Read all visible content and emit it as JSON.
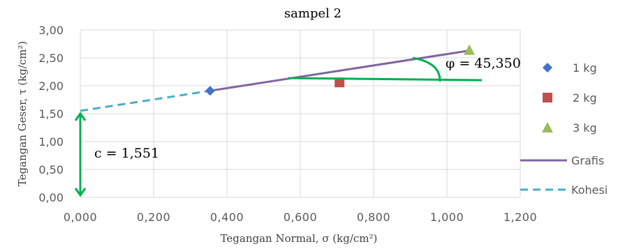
{
  "chart_data": {
    "type": "scatter",
    "title": "sampel 2",
    "xlabel": "Tegangan Normal, σ (kg/cm²)",
    "ylabel": "Tegangan Geser, τ (kg/cm²)",
    "xlim": [
      0,
      1.2
    ],
    "ylim": [
      0,
      3.0
    ],
    "x_ticks": [
      "0,000",
      "0,200",
      "0,400",
      "0,600",
      "0,800",
      "1,000",
      "1,200"
    ],
    "y_ticks": [
      "0,00",
      "0,50",
      "1,00",
      "1,50",
      "2,00",
      "2,50",
      "3,00"
    ],
    "grid": true,
    "legend_position": "right",
    "series": [
      {
        "name": "1 kg",
        "marker": "diamond",
        "color": "#4472c4",
        "points": [
          {
            "x": 0.354,
            "y": 1.91
          }
        ]
      },
      {
        "name": "2 kg",
        "marker": "square",
        "color": "#c0504d",
        "points": [
          {
            "x": 0.707,
            "y": 2.06
          }
        ]
      },
      {
        "name": "3 kg",
        "marker": "triangle",
        "color": "#9bbb59",
        "points": [
          {
            "x": 1.061,
            "y": 2.64
          }
        ]
      },
      {
        "name": "Grafis",
        "type": "line",
        "color": "#8064a2",
        "points": [
          {
            "x": 0.354,
            "y": 1.91
          },
          {
            "x": 1.061,
            "y": 2.63
          }
        ]
      },
      {
        "name": "Kohesi",
        "type": "dashed-line",
        "color": "#4bacc6",
        "points": [
          {
            "x": 0.0,
            "y": 1.551
          },
          {
            "x": 0.354,
            "y": 1.91
          }
        ]
      }
    ],
    "annotations": {
      "angle_label": "φ = 45,350",
      "cohesion_label": "c = 1,551",
      "annotation_color": "#00b050"
    }
  }
}
